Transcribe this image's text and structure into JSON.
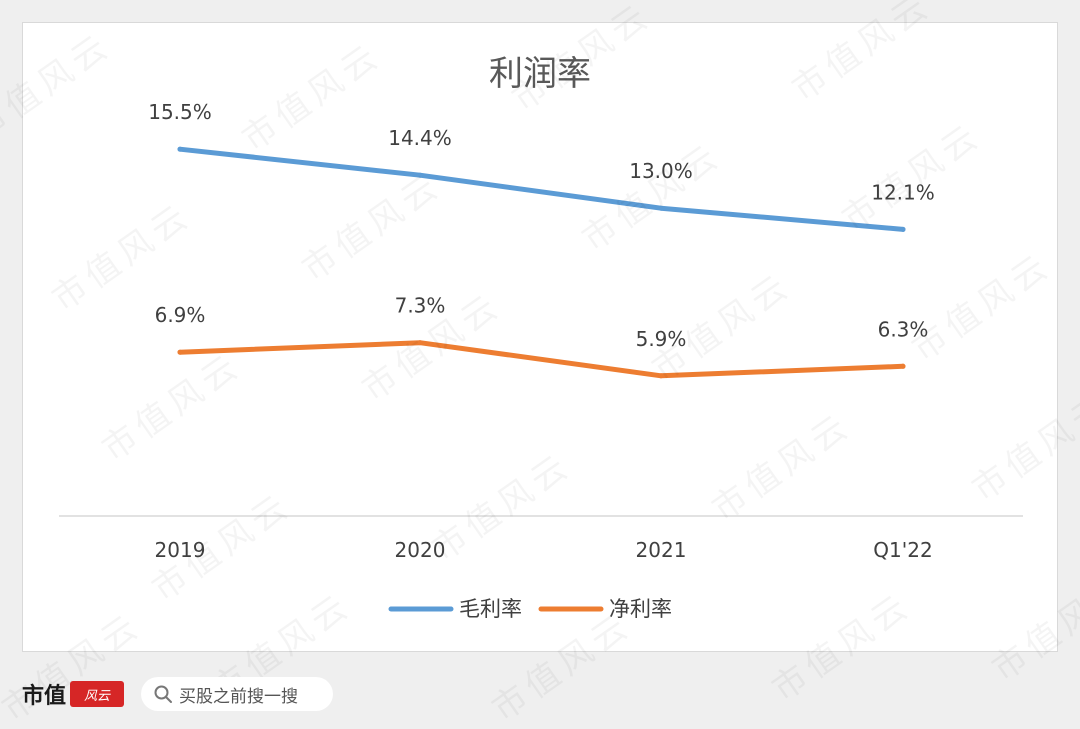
{
  "chart_data": {
    "type": "line",
    "title": "利润率",
    "categories": [
      "2019",
      "2020",
      "2021",
      "Q1'22"
    ],
    "series": [
      {
        "name": "毛利率",
        "values": [
          15.5,
          14.4,
          13.0,
          12.1
        ],
        "labels": [
          "15.5%",
          "14.4%",
          "13.0%",
          "12.1%"
        ],
        "color": "#5b9bd5"
      },
      {
        "name": "净利率",
        "values": [
          6.9,
          7.3,
          5.9,
          6.3
        ],
        "labels": [
          "6.9%",
          "7.3%",
          "5.9%",
          "6.3%"
        ],
        "color": "#ed7d31"
      }
    ],
    "ylim": [
      0,
      20
    ],
    "grid": false,
    "legend": "bottom",
    "axis_color": "#d9d9d9",
    "text_color": "#404040"
  },
  "watermark": {
    "text": "市值风云"
  },
  "footer": {
    "brand": "市值",
    "brand_seal": "风云",
    "search_icon": "search-icon",
    "search_text": "买股之前搜一搜"
  }
}
